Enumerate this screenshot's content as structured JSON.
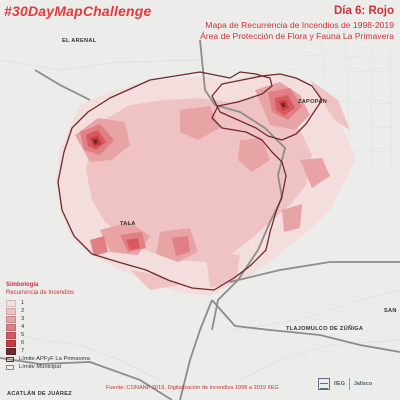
{
  "header": {
    "hashtag": "#30DayMapChallenge",
    "title": "Día 6: Rojo",
    "subtitle_line1": "Mapa de Recurrencia de Incendios de 1998-2019",
    "subtitle_line2": "Área de Protección de Flora y Fauna La Primavera"
  },
  "places": {
    "el_arenal": "EL ARENAL",
    "zapopan": "ZAPOPAN",
    "tala": "TALA",
    "tlajomulco": "TLAJOMULCO DE ZÚÑIGA",
    "acatlan": "ACATLÁN DE JUÁREZ",
    "san_partial": "SAN"
  },
  "legend": {
    "title": "Simbología",
    "subtitle": "Recurrencia de Incendios",
    "classes": [
      {
        "label": "1",
        "color": "#f4dedd"
      },
      {
        "label": "2",
        "color": "#efc3c3"
      },
      {
        "label": "3",
        "color": "#e8a3a5"
      },
      {
        "label": "4",
        "color": "#e08084"
      },
      {
        "label": "5",
        "color": "#d75a60"
      },
      {
        "label": "6",
        "color": "#c93a42"
      },
      {
        "label": "7",
        "color": "#6e2a30"
      }
    ],
    "boundary_label": "Límite APFyF La Primavera",
    "municipal_label": "Límite Municipal"
  },
  "footer": {
    "source": "Fuente: CONANP 2019, Digitalización de incendios 1998 a 2019 IIEG"
  },
  "logos": {
    "iieg_text": "IIEG",
    "jalisco_text": "Jalisco"
  },
  "colors": {
    "accent": "#e23a3f",
    "title_red": "#c9343a",
    "boundary": "#6e2a30",
    "municipal": "#8c8c8c",
    "background": "#ececea"
  }
}
